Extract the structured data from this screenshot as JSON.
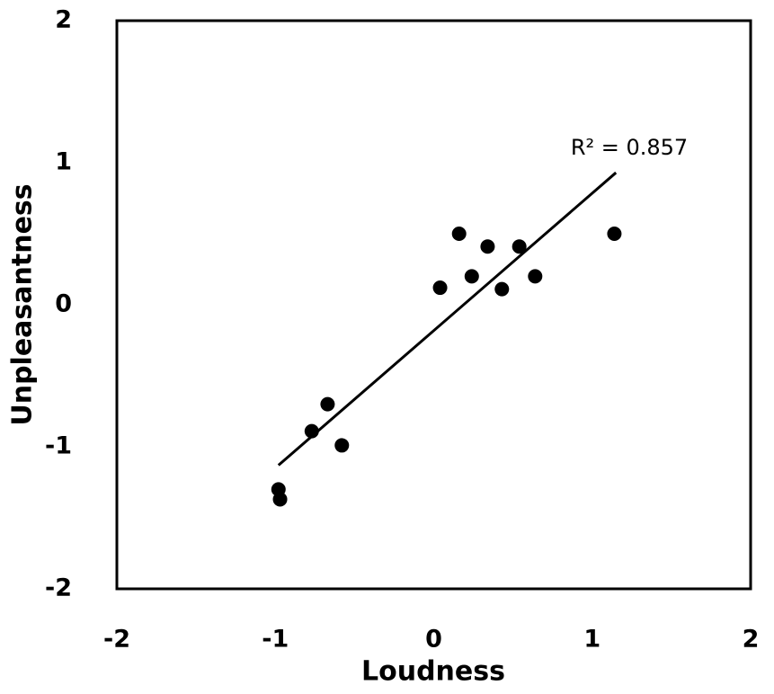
{
  "chart_data": {
    "type": "scatter",
    "x_label": "Loudness",
    "y_label": "Unpleasantness",
    "x": [
      -0.98,
      -0.97,
      -0.77,
      -0.67,
      -0.58,
      0.04,
      0.16,
      0.24,
      0.34,
      0.43,
      0.54,
      0.64,
      1.14
    ],
    "values": [
      -1.3,
      -1.37,
      -0.89,
      -0.7,
      -0.99,
      0.12,
      0.5,
      0.2,
      0.41,
      0.11,
      0.41,
      0.2,
      0.5
    ],
    "color": "#000000",
    "trendline": {
      "x": [
        -0.98,
        1.15
      ],
      "y": [
        -1.13,
        0.93
      ]
    },
    "annotation": "R² = 0.857",
    "xlim": [
      -2,
      2
    ],
    "ylim": [
      -2,
      2
    ],
    "xticks": [
      -2,
      -1,
      0,
      1,
      2
    ],
    "yticks": [
      -2,
      -1,
      0,
      1,
      2
    ]
  }
}
